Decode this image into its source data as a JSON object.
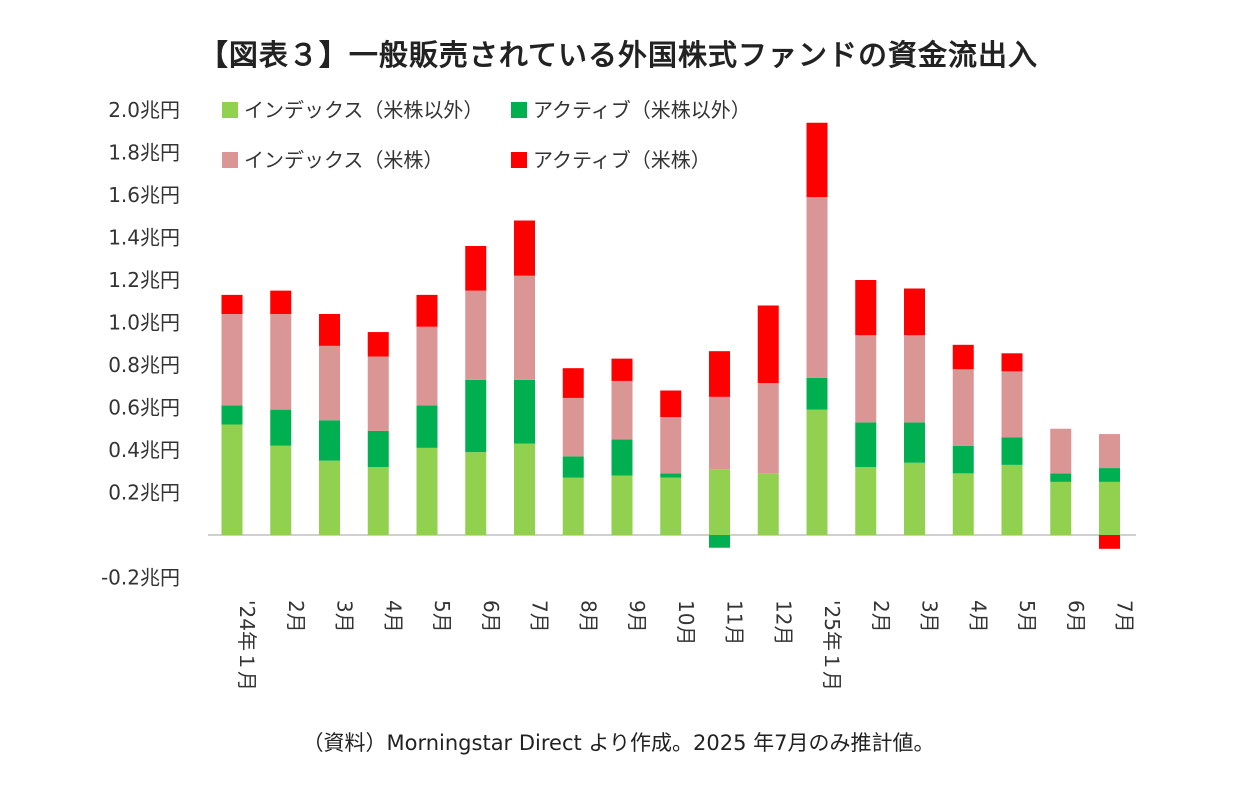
{
  "title": "【図表３】一般販売されている外国株式ファンドの資金流出入",
  "source": "（資料）Morningstar Direct より作成。2025 年7月のみ推計値。",
  "chart_data": {
    "type": "bar",
    "stacked": true,
    "title": "【図表３】一般販売されている外国株式ファンドの資金流出入",
    "ylim": [
      -0.2,
      2.0
    ],
    "yticks": [
      -0.2,
      0.2,
      0.4,
      0.6,
      0.8,
      1.0,
      1.2,
      1.4,
      1.6,
      1.8,
      2.0
    ],
    "ytick_labels": [
      "-0.2兆円",
      "0.2兆円",
      "0.4兆円",
      "0.6兆円",
      "0.8兆円",
      "1.0兆円",
      "1.2兆円",
      "1.4兆円",
      "1.6兆円",
      "1.8兆円",
      "2.0兆円"
    ],
    "grid": false,
    "legend": "top-left",
    "categories": [
      "'24年１月",
      "2月",
      "3月",
      "4月",
      "5月",
      "6月",
      "7月",
      "8月",
      "9月",
      "10月",
      "11月",
      "12月",
      "'25年１月",
      "2月",
      "3月",
      "4月",
      "5月",
      "6月",
      "7月"
    ],
    "series": [
      {
        "name": "インデックス（米株以外）",
        "color": "#92d050",
        "values": [
          0.52,
          0.42,
          0.35,
          0.32,
          0.41,
          0.39,
          0.43,
          0.27,
          0.28,
          0.27,
          0.31,
          0.29,
          0.59,
          0.32,
          0.34,
          0.29,
          0.33,
          0.25,
          0.25
        ]
      },
      {
        "name": "アクティブ（米株以外）",
        "color": "#00b050",
        "values": [
          0.09,
          0.17,
          0.19,
          0.17,
          0.2,
          0.34,
          0.3,
          0.1,
          0.17,
          0.02,
          -0.06,
          0.0,
          0.15,
          0.21,
          0.19,
          0.13,
          0.13,
          0.04,
          0.065
        ]
      },
      {
        "name": "インデックス（米株）",
        "color": "#da9694",
        "values": [
          0.43,
          0.45,
          0.35,
          0.35,
          0.37,
          0.42,
          0.49,
          0.275,
          0.275,
          0.265,
          0.34,
          0.425,
          0.85,
          0.41,
          0.41,
          0.36,
          0.31,
          0.21,
          0.16
        ]
      },
      {
        "name": "アクティブ（米株）",
        "color": "#ff0000",
        "values": [
          0.09,
          0.11,
          0.15,
          0.115,
          0.15,
          0.21,
          0.26,
          0.14,
          0.105,
          0.125,
          0.215,
          0.365,
          0.35,
          0.26,
          0.22,
          0.115,
          0.085,
          0.0,
          -0.065
        ]
      }
    ]
  }
}
